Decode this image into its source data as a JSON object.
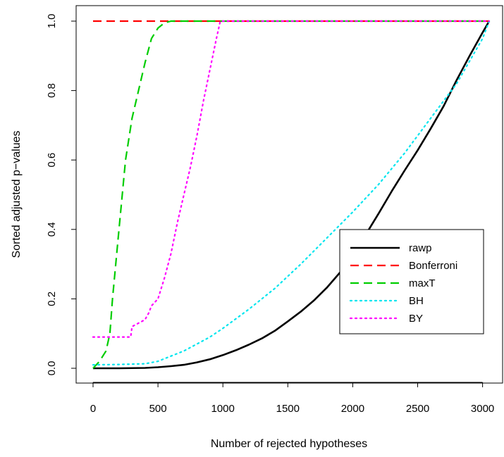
{
  "chart_data": {
    "type": "line",
    "title": "",
    "xlabel": "Number of rejected hypotheses",
    "ylabel": "Sorted adjusted p−values",
    "xlim": [
      0,
      3051
    ],
    "ylim": [
      0,
      1
    ],
    "xticks": [
      0,
      500,
      1000,
      1500,
      2000,
      2500,
      3000
    ],
    "yticks": [
      0.0,
      0.2,
      0.4,
      0.6,
      0.8,
      1.0
    ],
    "xtick_labels": [
      "0",
      "500",
      "1000",
      "1500",
      "2000",
      "2500",
      "3000"
    ],
    "ytick_labels": [
      "0.0",
      "0.2",
      "0.4",
      "0.6",
      "0.8",
      "1.0"
    ],
    "grid": false,
    "legend_position": "middle-right",
    "series": [
      {
        "name": "rawp",
        "color": "#000000",
        "dash": "solid",
        "x": [
          0,
          200,
          400,
          500,
          600,
          700,
          800,
          900,
          1000,
          1100,
          1200,
          1300,
          1400,
          1500,
          1600,
          1700,
          1800,
          1900,
          2000,
          2100,
          2200,
          2300,
          2400,
          2500,
          2600,
          2700,
          2800,
          2900,
          3000,
          3051
        ],
        "y": [
          0.0,
          0.0,
          0.001,
          0.003,
          0.006,
          0.01,
          0.017,
          0.026,
          0.038,
          0.052,
          0.068,
          0.086,
          0.108,
          0.135,
          0.163,
          0.195,
          0.232,
          0.275,
          0.325,
          0.385,
          0.446,
          0.51,
          0.57,
          0.628,
          0.69,
          0.755,
          0.83,
          0.9,
          0.967,
          1.0
        ]
      },
      {
        "name": "Bonferroni",
        "color": "#ff0000",
        "dash": "dashed",
        "x": [
          0,
          3051
        ],
        "y": [
          1.0,
          1.0
        ]
      },
      {
        "name": "maxT",
        "color": "#00cd00",
        "dash": "dashed",
        "x": [
          0,
          50,
          100,
          130,
          150,
          200,
          250,
          300,
          350,
          400,
          450,
          500,
          550,
          600,
          3051
        ],
        "y": [
          0.0,
          0.02,
          0.05,
          0.1,
          0.2,
          0.4,
          0.6,
          0.72,
          0.8,
          0.88,
          0.95,
          0.98,
          0.995,
          1.0,
          1.0
        ]
      },
      {
        "name": "BH",
        "color": "#00e5ee",
        "dash": "dotted",
        "x": [
          0,
          200,
          400,
          500,
          600,
          700,
          800,
          900,
          1000,
          1200,
          1400,
          1600,
          1800,
          2000,
          2200,
          2400,
          2600,
          2800,
          3000,
          3051
        ],
        "y": [
          0.01,
          0.011,
          0.013,
          0.02,
          0.035,
          0.05,
          0.07,
          0.09,
          0.115,
          0.17,
          0.23,
          0.3,
          0.375,
          0.45,
          0.53,
          0.62,
          0.72,
          0.82,
          0.95,
          1.0
        ]
      },
      {
        "name": "BY",
        "color": "#ff00ff",
        "dash": "dotted",
        "x": [
          0,
          290,
          300,
          350,
          400,
          430,
          450,
          500,
          550,
          600,
          650,
          700,
          750,
          800,
          850,
          900,
          950,
          980,
          3051
        ],
        "y": [
          0.09,
          0.09,
          0.12,
          0.13,
          0.14,
          0.16,
          0.18,
          0.2,
          0.26,
          0.33,
          0.42,
          0.5,
          0.58,
          0.67,
          0.77,
          0.86,
          0.95,
          1.0,
          1.0
        ]
      }
    ]
  }
}
